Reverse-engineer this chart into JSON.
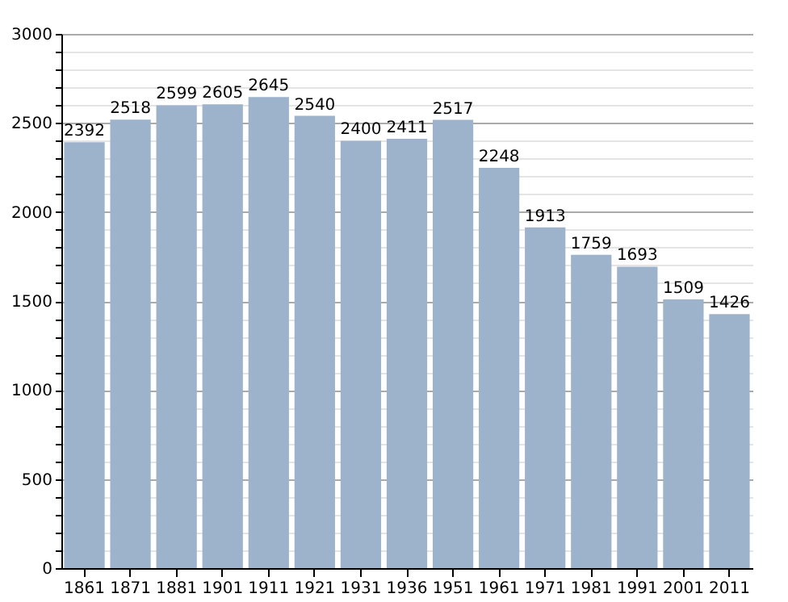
{
  "chart_data": {
    "type": "bar",
    "categories": [
      "1861",
      "1871",
      "1881",
      "1901",
      "1911",
      "1921",
      "1931",
      "1936",
      "1951",
      "1961",
      "1971",
      "1981",
      "1991",
      "2001",
      "2011"
    ],
    "values": [
      2392,
      2518,
      2599,
      2605,
      2645,
      2540,
      2400,
      2411,
      2517,
      2248,
      1913,
      1759,
      1693,
      1509,
      1426
    ],
    "color": "#9db3cc",
    "data_labels": true,
    "grid": "y",
    "ylim": [
      0,
      3000
    ],
    "yticks": [
      0,
      {
        "value": 100,
        "label": null
      },
      {
        "value": 200,
        "label": null
      },
      {
        "value": 300,
        "label": null
      },
      {
        "value": 400,
        "label": null
      },
      500,
      {
        "value": 600,
        "label": null
      },
      {
        "value": 700,
        "label": null
      },
      {
        "value": 800,
        "label": null
      },
      {
        "value": 900,
        "label": null
      },
      1000,
      {
        "value": 1100,
        "label": null
      },
      {
        "value": 1200,
        "label": null
      },
      {
        "value": 1300,
        "label": null
      },
      {
        "value": 1400,
        "label": null
      },
      1500,
      {
        "value": 1600,
        "label": null
      },
      {
        "value": 1700,
        "label": null
      },
      {
        "value": 1800,
        "label": null
      },
      {
        "value": 1900,
        "label": null
      },
      2000,
      {
        "value": 2100,
        "label": null
      },
      {
        "value": 2200,
        "label": null
      },
      {
        "value": 2300,
        "label": null
      },
      {
        "value": 2400,
        "label": null
      },
      2500,
      {
        "value": 2600,
        "label": null
      },
      {
        "value": 2700,
        "label": null
      },
      {
        "value": 2800,
        "label": null
      },
      {
        "value": 2900,
        "label": null
      },
      3000
    ]
  }
}
